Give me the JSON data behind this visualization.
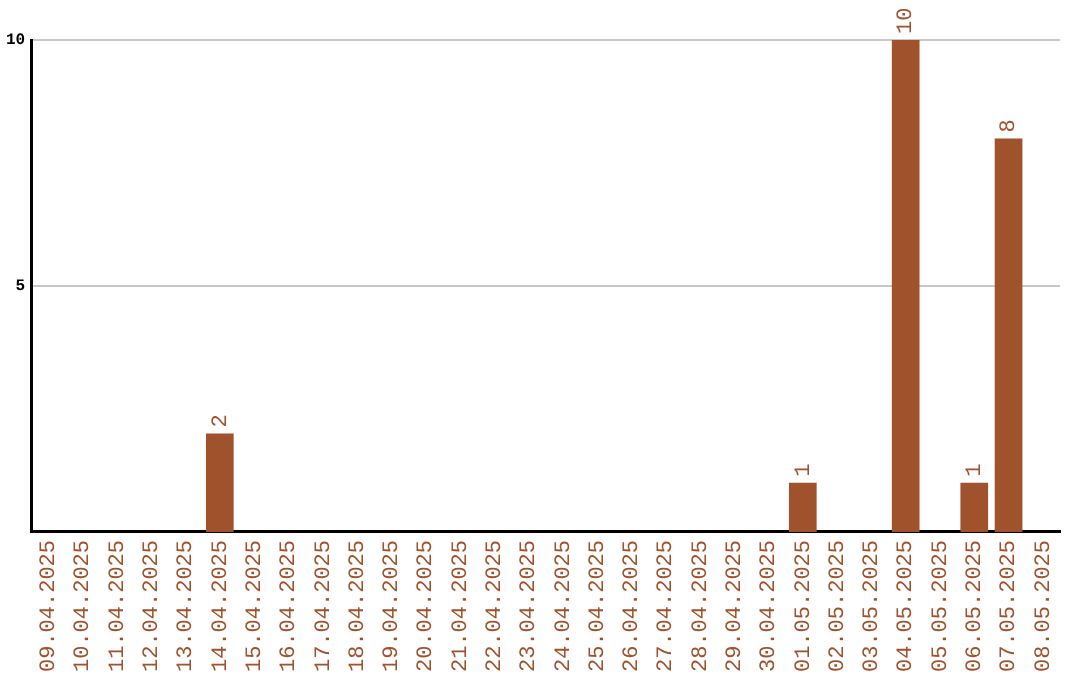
{
  "chart_data": {
    "type": "bar",
    "categories": [
      "09.04.2025",
      "10.04.2025",
      "11.04.2025",
      "12.04.2025",
      "13.04.2025",
      "14.04.2025",
      "15.04.2025",
      "16.04.2025",
      "17.04.2025",
      "18.04.2025",
      "19.04.2025",
      "20.04.2025",
      "21.04.2025",
      "22.04.2025",
      "23.04.2025",
      "24.04.2025",
      "25.04.2025",
      "26.04.2025",
      "27.04.2025",
      "28.04.2025",
      "29.04.2025",
      "30.04.2025",
      "01.05.2025",
      "02.05.2025",
      "03.05.2025",
      "04.05.2025",
      "05.05.2025",
      "06.05.2025",
      "07.05.2025",
      "08.05.2025"
    ],
    "values": [
      0,
      0,
      0,
      0,
      0,
      2,
      0,
      0,
      0,
      0,
      0,
      0,
      0,
      0,
      0,
      0,
      0,
      0,
      0,
      0,
      0,
      0,
      1,
      0,
      0,
      10,
      0,
      1,
      8,
      0
    ],
    "value_labels": [
      null,
      null,
      null,
      null,
      null,
      "2",
      null,
      null,
      null,
      null,
      null,
      null,
      null,
      null,
      null,
      null,
      null,
      null,
      null,
      null,
      null,
      null,
      "1",
      null,
      null,
      "10",
      null,
      "1",
      "8",
      null
    ],
    "color": "#a0522d",
    "ylim": [
      0,
      10
    ],
    "yticks": [
      5,
      10
    ],
    "grid": "y"
  }
}
